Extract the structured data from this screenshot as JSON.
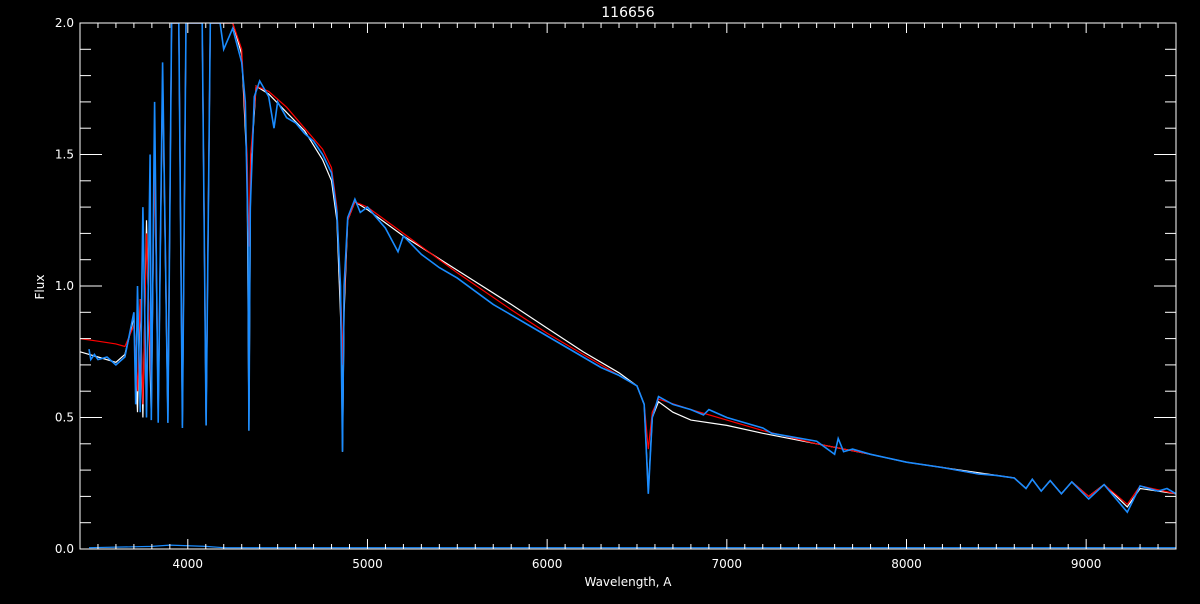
{
  "chart_data": {
    "type": "line",
    "title": "116656",
    "xlabel": "Wavelength, A",
    "ylabel": "Flux",
    "xlim": [
      3400,
      9500
    ],
    "ylim": [
      0.0,
      2.0
    ],
    "x_ticks": [
      4000,
      5000,
      6000,
      7000,
      8000,
      9000
    ],
    "x_minor_step": 100,
    "y_ticks": [
      0.0,
      0.5,
      1.0,
      1.5,
      2.0
    ],
    "y_tick_labels": [
      "0.0",
      "0.5",
      "1.0",
      "1.5",
      "2.0"
    ],
    "y_minor_step": 0.1,
    "grid": false,
    "background": "#000000",
    "axis_color": "#ffffff",
    "series": [
      {
        "color": "#ffffff",
        "points": [
          [
            3400,
            0.75
          ],
          [
            3500,
            0.73
          ],
          [
            3600,
            0.71
          ],
          [
            3650,
            0.74
          ],
          [
            3700,
            0.88
          ],
          [
            3720,
            0.52
          ],
          [
            3735,
            0.95
          ],
          [
            3750,
            0.5
          ],
          [
            3770,
            1.25
          ],
          [
            3797,
            0.5
          ],
          [
            3815,
            1.55
          ],
          [
            3835,
            0.5
          ],
          [
            3860,
            1.8
          ],
          [
            3889,
            0.48
          ],
          [
            3910,
            2.0
          ],
          [
            3950,
            2.0
          ],
          [
            3970,
            0.47
          ],
          [
            3990,
            2.0
          ],
          [
            4080,
            2.0
          ],
          [
            4102,
            0.47
          ],
          [
            4125,
            2.0
          ],
          [
            4250,
            2.0
          ],
          [
            4300,
            1.88
          ],
          [
            4330,
            1.45
          ],
          [
            4340,
            0.45
          ],
          [
            4350,
            1.45
          ],
          [
            4380,
            1.76
          ],
          [
            4450,
            1.73
          ],
          [
            4550,
            1.66
          ],
          [
            4650,
            1.59
          ],
          [
            4750,
            1.48
          ],
          [
            4800,
            1.4
          ],
          [
            4830,
            1.25
          ],
          [
            4855,
            0.8
          ],
          [
            4861,
            0.37
          ],
          [
            4870,
            0.9
          ],
          [
            4890,
            1.25
          ],
          [
            4930,
            1.32
          ],
          [
            5000,
            1.29
          ],
          [
            5200,
            1.19
          ],
          [
            5500,
            1.06
          ],
          [
            5800,
            0.93
          ],
          [
            6000,
            0.84
          ],
          [
            6200,
            0.75
          ],
          [
            6400,
            0.67
          ],
          [
            6500,
            0.62
          ],
          [
            6540,
            0.55
          ],
          [
            6563,
            0.22
          ],
          [
            6585,
            0.5
          ],
          [
            6620,
            0.56
          ],
          [
            6700,
            0.52
          ],
          [
            6800,
            0.49
          ],
          [
            7000,
            0.47
          ],
          [
            7200,
            0.44
          ],
          [
            7500,
            0.4
          ],
          [
            7800,
            0.36
          ],
          [
            8000,
            0.33
          ],
          [
            8200,
            0.31
          ],
          [
            8400,
            0.29
          ],
          [
            8500,
            0.28
          ],
          [
            8600,
            0.27
          ],
          [
            8665,
            0.23
          ],
          [
            8700,
            0.265
          ],
          [
            8750,
            0.22
          ],
          [
            8800,
            0.26
          ],
          [
            8862,
            0.21
          ],
          [
            8920,
            0.255
          ],
          [
            9014,
            0.2
          ],
          [
            9100,
            0.245
          ],
          [
            9229,
            0.16
          ],
          [
            9300,
            0.23
          ],
          [
            9500,
            0.21
          ]
        ]
      },
      {
        "color": "#ff0000",
        "points": [
          [
            3400,
            0.8
          ],
          [
            3500,
            0.79
          ],
          [
            3600,
            0.78
          ],
          [
            3650,
            0.77
          ],
          [
            3700,
            0.85
          ],
          [
            3720,
            0.6
          ],
          [
            3735,
            0.95
          ],
          [
            3750,
            0.55
          ],
          [
            3770,
            1.2
          ],
          [
            3797,
            0.6
          ],
          [
            3815,
            1.5
          ],
          [
            3835,
            0.55
          ],
          [
            3860,
            1.8
          ],
          [
            3889,
            0.55
          ],
          [
            3910,
            2.0
          ],
          [
            3950,
            2.0
          ],
          [
            3970,
            0.5
          ],
          [
            3990,
            2.0
          ],
          [
            4080,
            2.0
          ],
          [
            4102,
            0.5
          ],
          [
            4125,
            2.0
          ],
          [
            4250,
            2.0
          ],
          [
            4300,
            1.9
          ],
          [
            4330,
            1.5
          ],
          [
            4340,
            1.15
          ],
          [
            4350,
            1.5
          ],
          [
            4380,
            1.76
          ],
          [
            4450,
            1.74
          ],
          [
            4550,
            1.68
          ],
          [
            4650,
            1.6
          ],
          [
            4750,
            1.52
          ],
          [
            4800,
            1.45
          ],
          [
            4830,
            1.3
          ],
          [
            4855,
            0.9
          ],
          [
            4861,
            0.7
          ],
          [
            4870,
            0.95
          ],
          [
            4890,
            1.25
          ],
          [
            4930,
            1.32
          ],
          [
            5000,
            1.3
          ],
          [
            5200,
            1.2
          ],
          [
            5500,
            1.05
          ],
          [
            5800,
            0.91
          ],
          [
            6000,
            0.82
          ],
          [
            6200,
            0.74
          ],
          [
            6400,
            0.66
          ],
          [
            6500,
            0.62
          ],
          [
            6540,
            0.55
          ],
          [
            6563,
            0.38
          ],
          [
            6585,
            0.52
          ],
          [
            6620,
            0.57
          ],
          [
            6800,
            0.53
          ],
          [
            7000,
            0.49
          ],
          [
            7200,
            0.45
          ],
          [
            7500,
            0.4
          ],
          [
            7800,
            0.36
          ],
          [
            8000,
            0.33
          ],
          [
            8200,
            0.31
          ],
          [
            8400,
            0.285
          ],
          [
            8500,
            0.28
          ],
          [
            8600,
            0.27
          ],
          [
            8665,
            0.23
          ],
          [
            8700,
            0.265
          ],
          [
            8750,
            0.22
          ],
          [
            8800,
            0.26
          ],
          [
            8862,
            0.21
          ],
          [
            8920,
            0.255
          ],
          [
            9014,
            0.2
          ],
          [
            9100,
            0.245
          ],
          [
            9229,
            0.17
          ],
          [
            9300,
            0.24
          ],
          [
            9500,
            0.21
          ]
        ]
      },
      {
        "color": "#1a8cff",
        "points": [
          [
            3450,
            0.76
          ],
          [
            3460,
            0.72
          ],
          [
            3480,
            0.74
          ],
          [
            3500,
            0.72
          ],
          [
            3550,
            0.73
          ],
          [
            3600,
            0.7
          ],
          [
            3650,
            0.73
          ],
          [
            3700,
            0.9
          ],
          [
            3710,
            0.55
          ],
          [
            3720,
            1.0
          ],
          [
            3735,
            0.52
          ],
          [
            3750,
            1.3
          ],
          [
            3770,
            0.5
          ],
          [
            3790,
            1.5
          ],
          [
            3797,
            0.49
          ],
          [
            3815,
            1.7
          ],
          [
            3835,
            0.48
          ],
          [
            3860,
            1.85
          ],
          [
            3889,
            0.48
          ],
          [
            3910,
            2.0
          ],
          [
            3950,
            2.0
          ],
          [
            3970,
            0.46
          ],
          [
            3990,
            2.0
          ],
          [
            4080,
            2.0
          ],
          [
            4102,
            0.47
          ],
          [
            4125,
            2.0
          ],
          [
            4180,
            2.0
          ],
          [
            4200,
            1.9
          ],
          [
            4250,
            1.98
          ],
          [
            4300,
            1.85
          ],
          [
            4320,
            1.7
          ],
          [
            4335,
            1.2
          ],
          [
            4340,
            0.45
          ],
          [
            4348,
            1.3
          ],
          [
            4370,
            1.72
          ],
          [
            4400,
            1.78
          ],
          [
            4450,
            1.72
          ],
          [
            4480,
            1.6
          ],
          [
            4500,
            1.7
          ],
          [
            4550,
            1.64
          ],
          [
            4600,
            1.62
          ],
          [
            4650,
            1.58
          ],
          [
            4700,
            1.55
          ],
          [
            4750,
            1.5
          ],
          [
            4800,
            1.43
          ],
          [
            4830,
            1.28
          ],
          [
            4850,
            1.0
          ],
          [
            4861,
            0.37
          ],
          [
            4870,
            1.0
          ],
          [
            4890,
            1.26
          ],
          [
            4930,
            1.33
          ],
          [
            4960,
            1.28
          ],
          [
            5000,
            1.3
          ],
          [
            5100,
            1.22
          ],
          [
            5170,
            1.13
          ],
          [
            5200,
            1.19
          ],
          [
            5300,
            1.12
          ],
          [
            5400,
            1.07
          ],
          [
            5500,
            1.03
          ],
          [
            5600,
            0.98
          ],
          [
            5700,
            0.93
          ],
          [
            5800,
            0.89
          ],
          [
            5900,
            0.85
          ],
          [
            6000,
            0.81
          ],
          [
            6100,
            0.77
          ],
          [
            6200,
            0.73
          ],
          [
            6300,
            0.69
          ],
          [
            6400,
            0.66
          ],
          [
            6500,
            0.62
          ],
          [
            6540,
            0.55
          ],
          [
            6563,
            0.21
          ],
          [
            6585,
            0.5
          ],
          [
            6620,
            0.58
          ],
          [
            6700,
            0.55
          ],
          [
            6800,
            0.53
          ],
          [
            6870,
            0.51
          ],
          [
            6900,
            0.53
          ],
          [
            7000,
            0.5
          ],
          [
            7200,
            0.46
          ],
          [
            7250,
            0.44
          ],
          [
            7500,
            0.41
          ],
          [
            7600,
            0.36
          ],
          [
            7620,
            0.42
          ],
          [
            7650,
            0.37
          ],
          [
            7700,
            0.38
          ],
          [
            7800,
            0.36
          ],
          [
            8000,
            0.33
          ],
          [
            8200,
            0.31
          ],
          [
            8400,
            0.285
          ],
          [
            8500,
            0.28
          ],
          [
            8600,
            0.27
          ],
          [
            8665,
            0.23
          ],
          [
            8700,
            0.265
          ],
          [
            8750,
            0.22
          ],
          [
            8800,
            0.26
          ],
          [
            8862,
            0.21
          ],
          [
            8920,
            0.255
          ],
          [
            9014,
            0.19
          ],
          [
            9100,
            0.245
          ],
          [
            9229,
            0.14
          ],
          [
            9300,
            0.24
          ],
          [
            9400,
            0.22
          ],
          [
            9450,
            0.23
          ],
          [
            9500,
            0.21
          ]
        ]
      },
      {
        "color": "#1a8cff",
        "points": [
          [
            3450,
            0.005
          ],
          [
            3800,
            0.01
          ],
          [
            3900,
            0.015
          ],
          [
            4100,
            0.01
          ],
          [
            4200,
            0.005
          ],
          [
            9500,
            0.005
          ]
        ]
      }
    ]
  }
}
